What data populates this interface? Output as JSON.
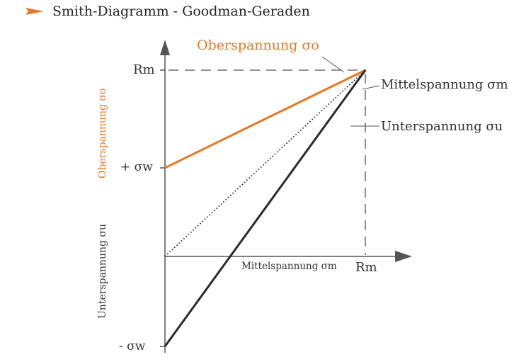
{
  "header": {
    "title": "Smith-Diagramm - Goodman-Geraden",
    "bullet_icon": "orange-arrow-bullet-icon"
  },
  "colors": {
    "accent": "#e87722",
    "line_dark": "#2b2b2b",
    "axis": "#555555",
    "text": "#333333"
  },
  "labels": {
    "oberspannung_title": "Oberspannung σo",
    "rm_left": "Rm",
    "plus_sigma_w": "+ σw",
    "minus_sigma_w": "- σw",
    "rm_bottom": "Rm",
    "mittelspannung_axis": "Mittelspannung σm",
    "mittelspannung_right": "Mittelspannung σm",
    "unterspannung_right": "Unterspannung σu",
    "y_label_oberspannung": "Oberspannung σo",
    "y_label_unterspannung": "Unterspannung σu"
  }
}
